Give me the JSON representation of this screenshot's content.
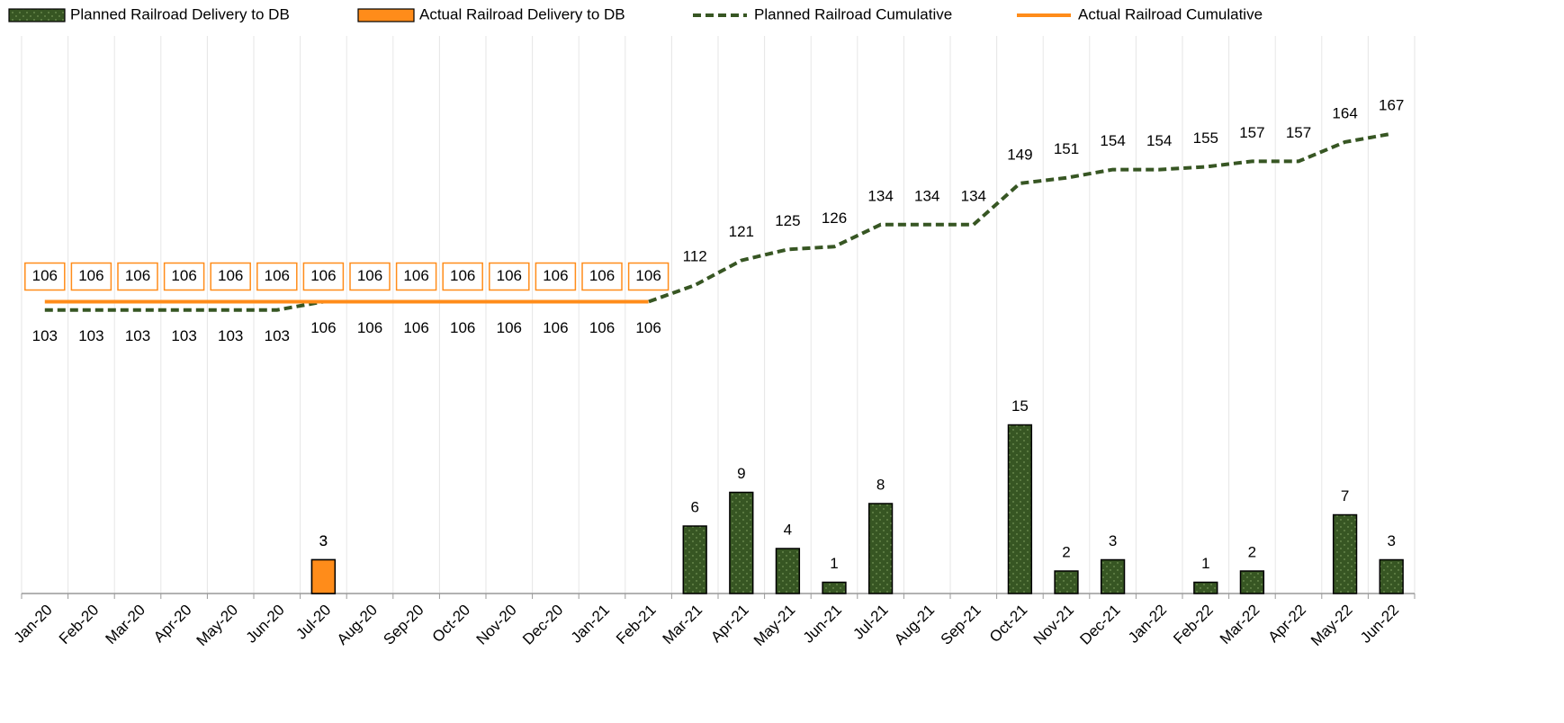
{
  "chart_data": {
    "type": "bar",
    "categories": [
      "Jan-20",
      "Feb-20",
      "Mar-20",
      "Apr-20",
      "May-20",
      "Jun-20",
      "Jul-20",
      "Aug-20",
      "Sep-20",
      "Oct-20",
      "Nov-20",
      "Dec-20",
      "Jan-21",
      "Feb-21",
      "Mar-21",
      "Apr-21",
      "May-21",
      "Jun-21",
      "Jul-21",
      "Aug-21",
      "Sep-21",
      "Oct-21",
      "Nov-21",
      "Dec-21",
      "Jan-22",
      "Feb-22",
      "Mar-22",
      "Apr-22",
      "May-22",
      "Jun-22"
    ],
    "ylim": [
      0,
      48
    ],
    "y2lim": [
      0,
      196
    ],
    "grid": true,
    "legend": "top",
    "series": [
      {
        "name": "Planned Railroad Delivery to DB",
        "type": "bar",
        "color": "#375623",
        "values": [
          null,
          null,
          null,
          null,
          null,
          null,
          3,
          null,
          null,
          null,
          null,
          null,
          null,
          null,
          6,
          9,
          4,
          1,
          8,
          null,
          null,
          15,
          2,
          3,
          null,
          1,
          2,
          null,
          7,
          3
        ]
      },
      {
        "name": "Actual Railroad Delivery to DB",
        "type": "bar",
        "color": "#ff8c1a",
        "values": [
          null,
          null,
          null,
          null,
          null,
          null,
          3,
          null,
          null,
          null,
          null,
          null,
          null,
          null,
          null,
          null,
          null,
          null,
          null,
          null,
          null,
          null,
          null,
          null,
          null,
          null,
          null,
          null,
          null,
          null
        ]
      },
      {
        "name": "Planned Railroad Cumulative",
        "type": "line",
        "dashed": true,
        "axis": "y2",
        "color": "#375623",
        "values": [
          103,
          103,
          103,
          103,
          103,
          103,
          106,
          106,
          106,
          106,
          106,
          106,
          106,
          106,
          112,
          121,
          125,
          126,
          134,
          134,
          134,
          149,
          151,
          154,
          154,
          155,
          157,
          157,
          164,
          167
        ]
      },
      {
        "name": "Actual Railroad Cumulative",
        "type": "line",
        "dashed": false,
        "axis": "y2",
        "color": "#ff8c1a",
        "values": [
          106,
          106,
          106,
          106,
          106,
          106,
          106,
          106,
          106,
          106,
          106,
          106,
          106,
          106,
          null,
          null,
          null,
          null,
          null,
          null,
          null,
          null,
          null,
          null,
          null,
          null,
          null,
          null,
          null,
          null
        ]
      }
    ]
  }
}
